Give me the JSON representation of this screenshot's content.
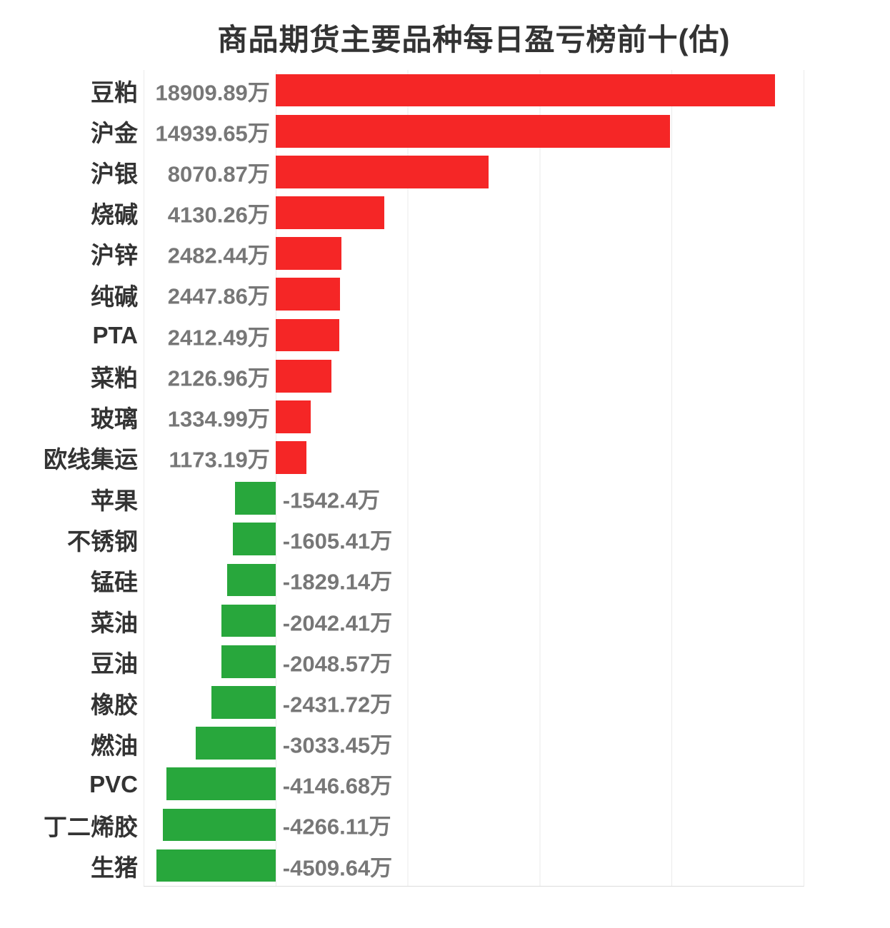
{
  "title": "商品期货主要品种每日盈亏榜前十(估)",
  "colors": {
    "background": "#ffffff",
    "positive": "#f52626",
    "negative": "#28a73c",
    "grid": "#ebebeb",
    "axis": "#dcdcdc",
    "title": "#333333",
    "category_label": "#333333",
    "value_label": "#777777"
  },
  "chart_data": {
    "type": "bar",
    "orientation": "horizontal",
    "title": "商品期货主要品种每日盈亏榜前十(估)",
    "categories": [
      "豆粕",
      "沪金",
      "沪银",
      "烧碱",
      "沪锌",
      "纯碱",
      "PTA",
      "菜粕",
      "玻璃",
      "欧线集运",
      "苹果",
      "不锈钢",
      "锰硅",
      "菜油",
      "豆油",
      "橡胶",
      "燃油",
      "PVC",
      "丁二烯胶",
      "生猪"
    ],
    "values": [
      18909.89,
      14939.65,
      8070.87,
      4130.26,
      2482.44,
      2447.86,
      2412.49,
      2126.96,
      1334.99,
      1173.19,
      -1542.4,
      -1605.41,
      -1829.14,
      -2042.41,
      -2048.57,
      -2431.72,
      -3033.45,
      -4146.68,
      -4266.11,
      -4509.64
    ],
    "value_labels": [
      "18909.89万",
      "14939.65万",
      "8070.87万",
      "4130.26万",
      "2482.44万",
      "2447.86万",
      "2412.49万",
      "2126.96万",
      "1334.99万",
      "1173.19万",
      "-1542.4万",
      "-1605.41万",
      "-1829.14万",
      "-2042.41万",
      "-2048.57万",
      "-2431.72万",
      "-3033.45万",
      "-4146.68万",
      "-4266.11万",
      "-4509.64万"
    ],
    "unit": "万",
    "xlabel": "",
    "ylabel": "",
    "xlim": [
      -5000,
      20000
    ],
    "x_interval": 5000,
    "grid": true,
    "legend": "none",
    "value_label_position": "opposite-side-of-zero-axis",
    "positive_color": "#f52626",
    "negative_color": "#28a73c"
  }
}
